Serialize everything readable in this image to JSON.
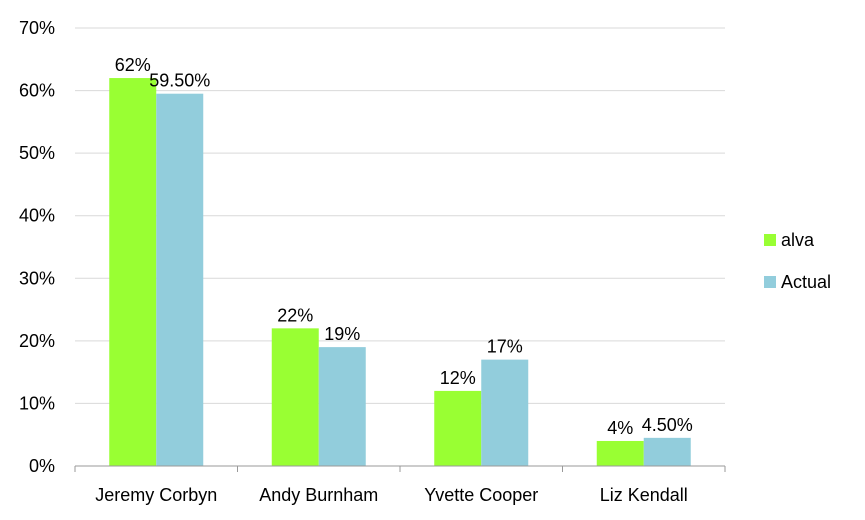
{
  "chart_data": {
    "type": "bar",
    "categories": [
      "Jeremy Corbyn",
      "Andy Burnham",
      "Yvette Cooper",
      "Liz Kendall"
    ],
    "series": [
      {
        "name": "alva",
        "color": "#99ff33",
        "values": [
          62,
          22,
          12,
          4
        ],
        "labels": [
          "62%",
          "22%",
          "12%",
          "4%"
        ]
      },
      {
        "name": "Actual",
        "color": "#92cddc",
        "values": [
          59.5,
          19,
          17,
          4.5
        ],
        "labels": [
          "59.50%",
          "19%",
          "17%",
          "4.50%"
        ]
      }
    ],
    "ylim": [
      0,
      70
    ],
    "yticks": [
      0,
      10,
      20,
      30,
      40,
      50,
      60,
      70
    ],
    "ytick_labels": [
      "0%",
      "10%",
      "20%",
      "30%",
      "40%",
      "50%",
      "60%",
      "70%"
    ],
    "grid": true,
    "legend_position": "right",
    "title": "",
    "xlabel": "",
    "ylabel": ""
  }
}
